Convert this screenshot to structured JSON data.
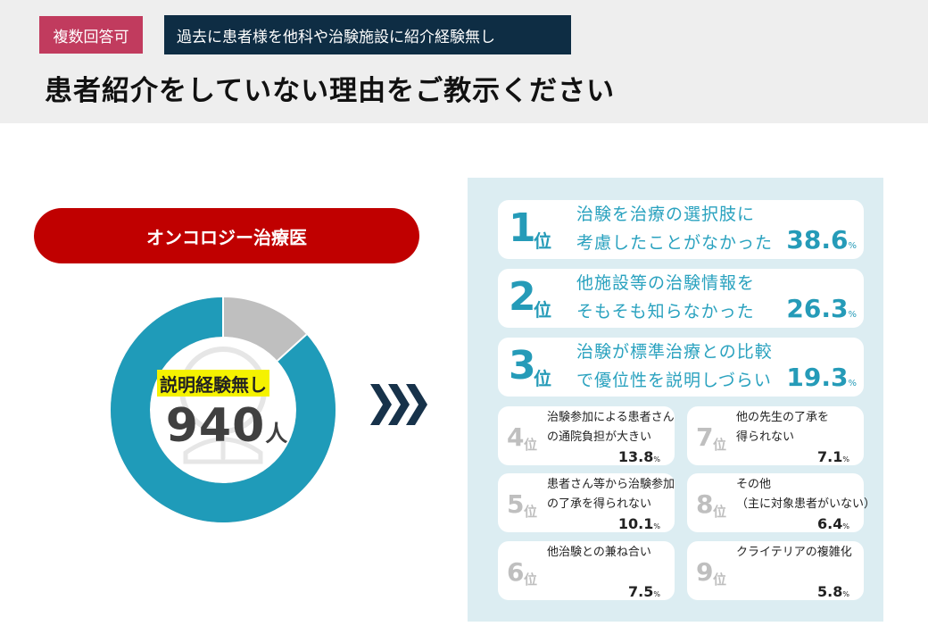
{
  "header": {
    "multi_answer_badge": "複数回答可",
    "condition_badge": "過去に患者様を他科や治験施設に紹介経験無し",
    "question": "患者紹介をしていない理由をご教示ください"
  },
  "group_label": "オンコロジー治療医",
  "donut": {
    "title": "説明経験無し",
    "value": "940",
    "unit": "人",
    "colors": {
      "main": "#1f9bb9",
      "secondary": "#bfbfbf"
    }
  },
  "rank_suffix": "位",
  "percent_mark": "%",
  "reasons": [
    {
      "rank": "1",
      "lines": [
        "治験を治療の選択肢に",
        "考慮したことがなかった"
      ],
      "percent": "38.6"
    },
    {
      "rank": "2",
      "lines": [
        "他施設等の治験情報を",
        "そもそも知らなかった"
      ],
      "percent": "26.3"
    },
    {
      "rank": "3",
      "lines": [
        "治験が標準治療との比較",
        "で優位性を説明しづらい"
      ],
      "percent": "19.3"
    },
    {
      "rank": "4",
      "lines": [
        "治験参加による患者さん",
        "の通院負担が大きい"
      ],
      "percent": "13.8"
    },
    {
      "rank": "5",
      "lines": [
        "患者さん等から治験参加",
        "の了承を得られない"
      ],
      "percent": "10.1"
    },
    {
      "rank": "6",
      "lines": [
        "他治験との兼ね合い"
      ],
      "percent": "7.5"
    },
    {
      "rank": "7",
      "lines": [
        "他の先生の了承を",
        "得られない"
      ],
      "percent": "7.1"
    },
    {
      "rank": "8",
      "lines": [
        "その他",
        "（主に対象患者がいない）"
      ],
      "percent": "6.4"
    },
    {
      "rank": "9",
      "lines": [
        "クライテリアの複雑化"
      ],
      "percent": "5.8"
    }
  ],
  "colors": {
    "accent": "#259bb8",
    "brand_red": "#c00000",
    "navy": "#0e2d44",
    "panel": "#dcedf2"
  }
}
